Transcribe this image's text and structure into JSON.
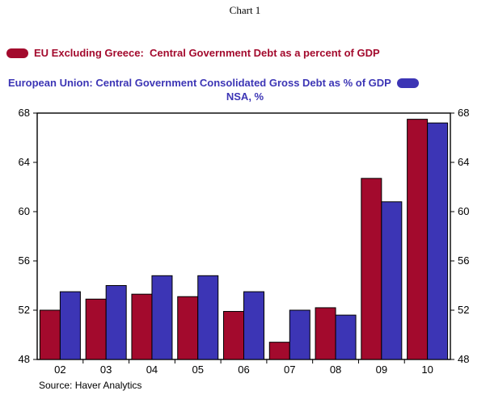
{
  "title": "Chart 1",
  "legend": {
    "series1": "EU Excluding Greece:  Central Government Debt as a percent of GDP",
    "series2": "European Union: Central Government Consolidated Gross Debt as % of GDP"
  },
  "subtitle": "NSA, %",
  "source": "Source: Haver Analytics",
  "colors": {
    "red": "#A30A2D",
    "blue": "#3C35B5",
    "axis": "#000000"
  },
  "chart_data": {
    "type": "bar",
    "categories": [
      "02",
      "03",
      "04",
      "05",
      "06",
      "07",
      "08",
      "09",
      "10"
    ],
    "series": [
      {
        "name": "EU Excluding Greece: Central Government Debt as a percent of GDP",
        "color_key": "red",
        "values": [
          52.0,
          52.9,
          53.3,
          53.1,
          51.9,
          49.4,
          52.2,
          62.7,
          67.5
        ]
      },
      {
        "name": "European Union: Central Government Consolidated Gross Debt as % of GDP",
        "color_key": "blue",
        "values": [
          53.5,
          54.0,
          54.8,
          54.8,
          53.5,
          52.0,
          51.6,
          60.8,
          67.2
        ]
      }
    ],
    "title": "Chart 1",
    "subtitle": "NSA, %",
    "xlabel": "",
    "ylabel": "",
    "ylim": [
      48,
      68
    ],
    "yticks": [
      48,
      52,
      56,
      60,
      64,
      68
    ],
    "grid": false,
    "legend_position": "top"
  }
}
